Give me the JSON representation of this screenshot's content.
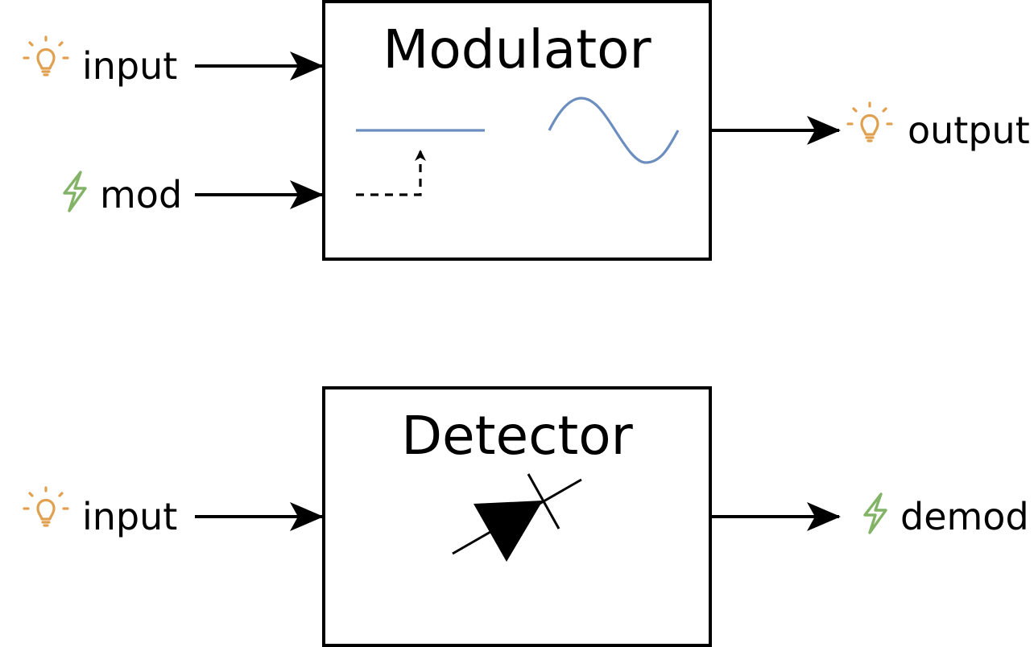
{
  "colors": {
    "light_icon": "#E0A050",
    "electric_icon": "#82B366",
    "signal_line": "#6C8EBF",
    "stroke": "#000000",
    "background": "#FFFFFF"
  },
  "modulator": {
    "title": "Modulator",
    "inputs": [
      {
        "label": "input",
        "icon": "lightbulb-icon"
      },
      {
        "label": "mod",
        "icon": "lightning-icon"
      }
    ],
    "output": {
      "label": "output",
      "icon": "lightbulb-icon"
    }
  },
  "detector": {
    "title": "Detector",
    "input": {
      "label": "input",
      "icon": "lightbulb-icon"
    },
    "output": {
      "label": "demod",
      "icon": "lightning-icon"
    }
  }
}
